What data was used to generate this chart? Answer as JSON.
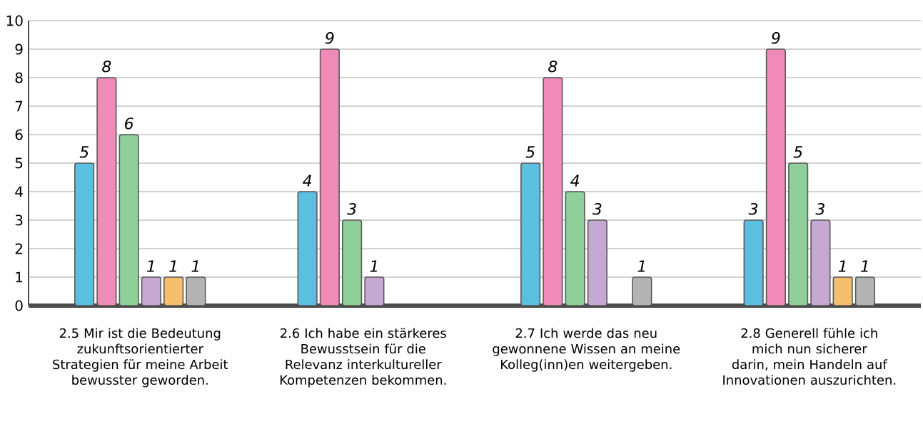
{
  "chart_data": {
    "type": "bar",
    "categories": [
      "2.5 Mir ist die Bedeutung zukunftsorientierter Strategien für meine Arbeit bewusster geworden.",
      "2.6 Ich habe ein stärkeres Bewusstsein für die Relevanz interkultureller Kompetenzen bekommen.",
      "2.7 Ich werde das neu gewonnene Wissen an meine Kolleg(inn)en weitergeben.",
      "2.8 Generell fühle ich mich nun sicherer darin, mein Handeln auf Innovationen auszurichten."
    ],
    "series": [
      {
        "color": "#5bbfe0",
        "values": [
          5,
          4,
          5,
          3
        ]
      },
      {
        "color": "#ef8bb6",
        "values": [
          8,
          9,
          8,
          9
        ]
      },
      {
        "color": "#8fcf9a",
        "values": [
          6,
          3,
          4,
          5
        ]
      },
      {
        "color": "#c6a9d3",
        "values": [
          1,
          1,
          3,
          3
        ]
      },
      {
        "color": "#f5bf6e",
        "values": [
          1,
          null,
          null,
          1
        ]
      },
      {
        "color": "#b3b3b3",
        "values": [
          1,
          null,
          1,
          1
        ]
      }
    ],
    "ylim": [
      0,
      10
    ],
    "yticks": [
      0,
      1,
      2,
      3,
      4,
      5,
      6,
      7,
      8,
      9,
      10
    ],
    "grid": "y",
    "data_labels": true
  }
}
